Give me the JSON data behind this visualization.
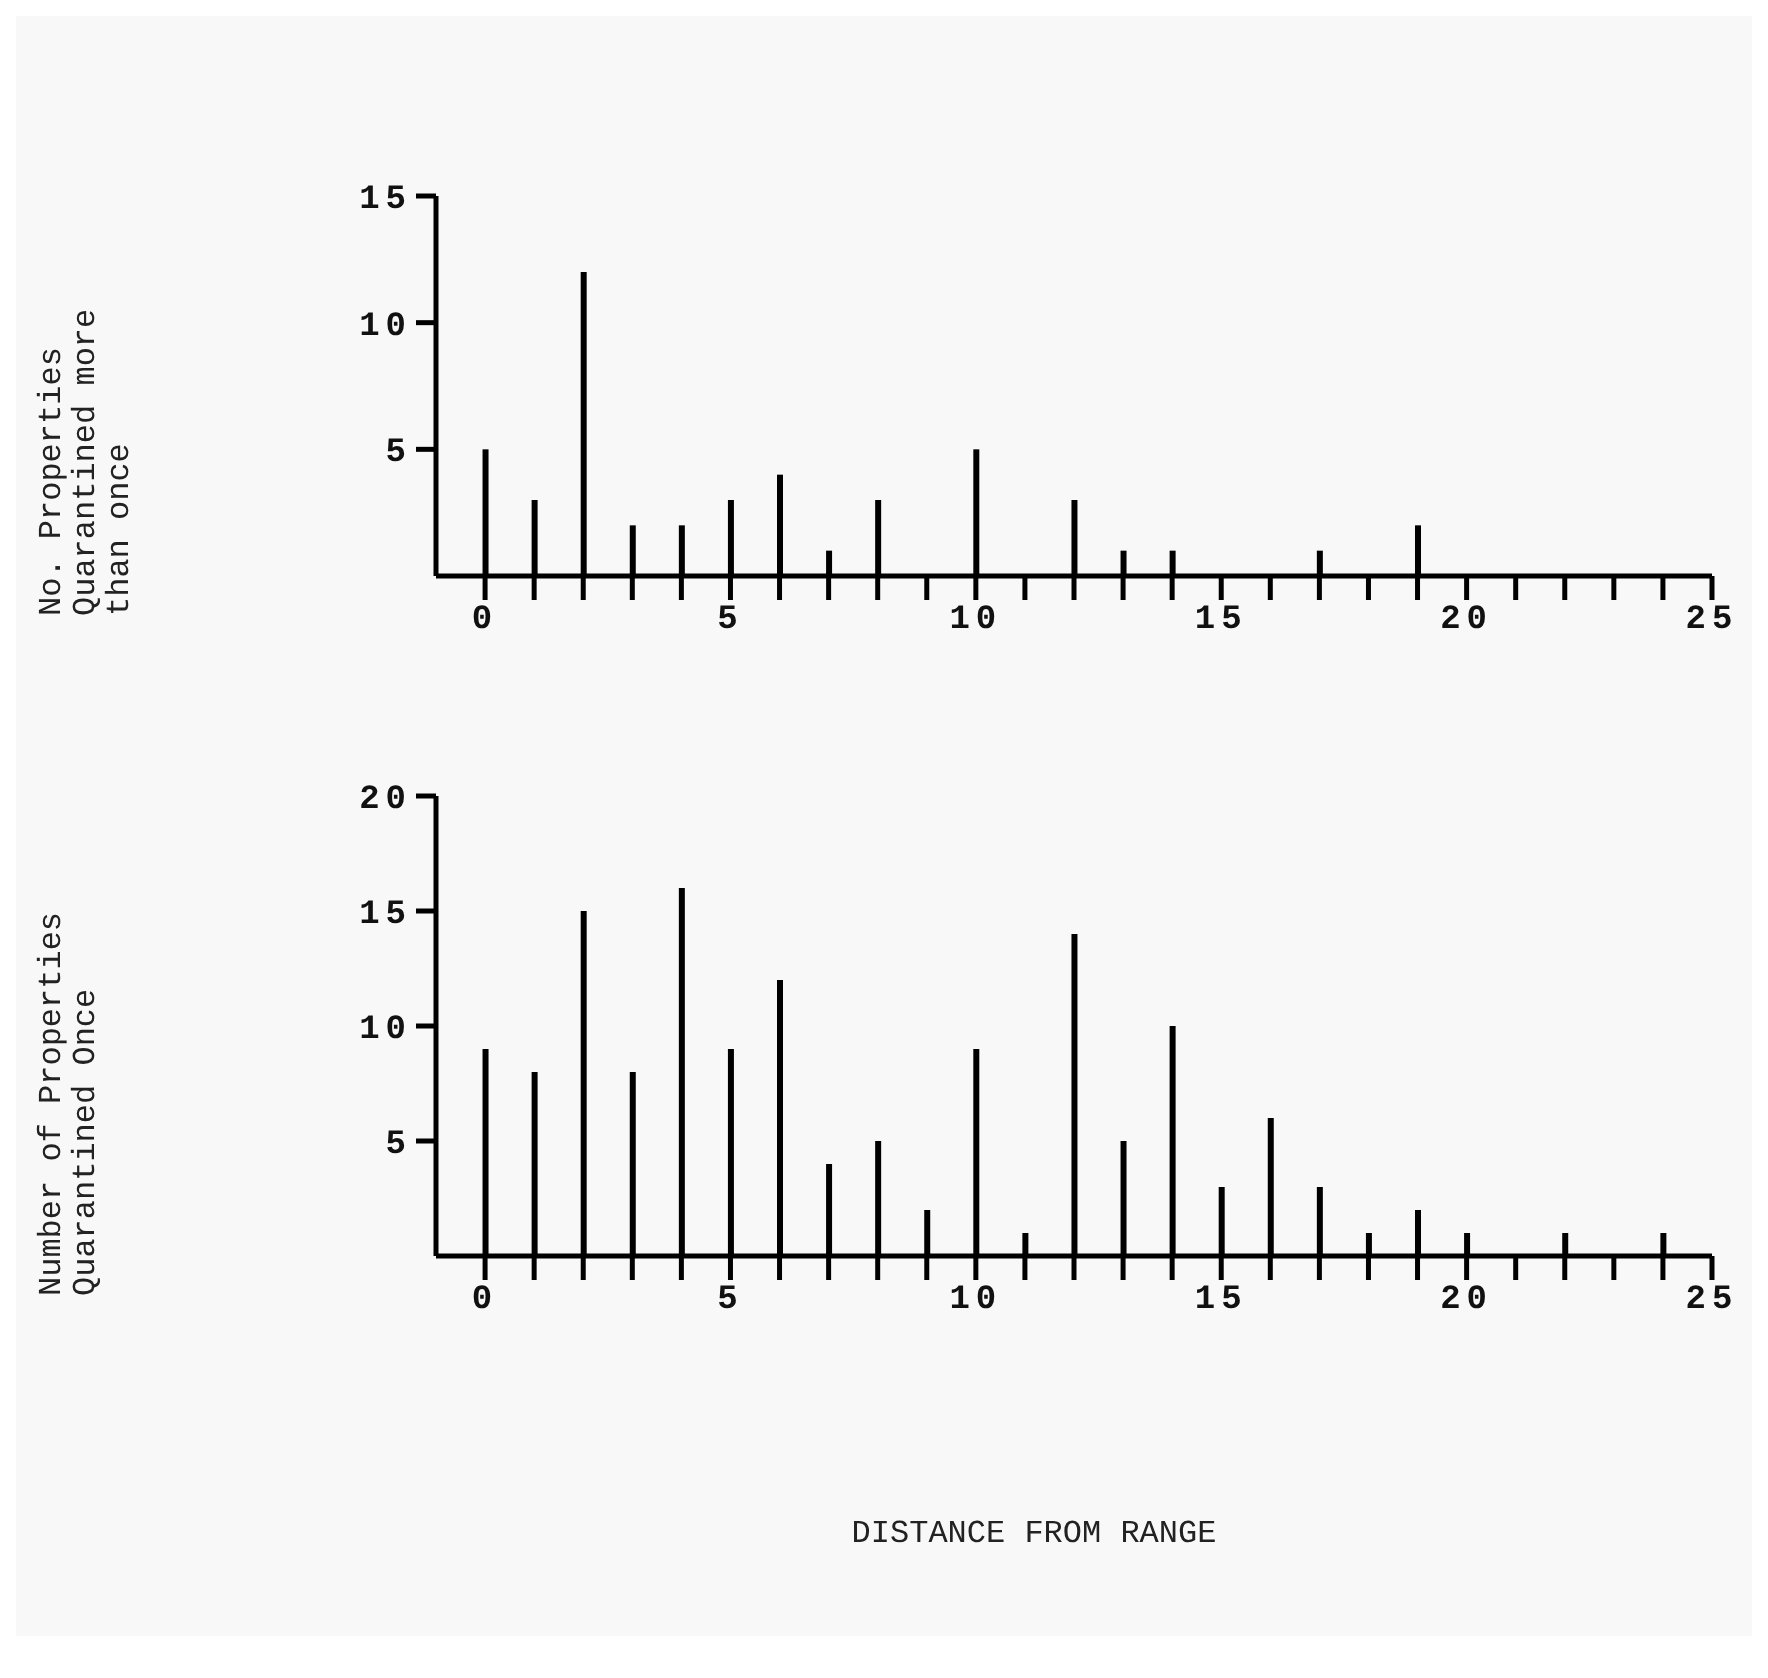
{
  "chart_data": [
    {
      "type": "bar",
      "ylabel": "No. Properties Quarantined more than once",
      "x": [
        0,
        1,
        2,
        3,
        4,
        5,
        6,
        7,
        8,
        9,
        10,
        11,
        12,
        13,
        14,
        15,
        16,
        17,
        18,
        19,
        20,
        21,
        22,
        23,
        24,
        25
      ],
      "values": [
        5,
        3,
        12,
        2,
        2,
        3,
        4,
        1,
        3,
        0,
        5,
        0,
        3,
        1,
        1,
        0,
        0,
        1,
        0,
        2,
        0,
        0,
        0,
        0,
        0,
        0
      ],
      "color": "#000000",
      "xlim": [
        -1,
        25
      ],
      "ylim": [
        0,
        15
      ],
      "yticks": [
        5,
        10,
        15
      ],
      "xticks": [
        0,
        {
          "value": 1,
          "label": null
        },
        {
          "value": 2,
          "label": null
        },
        {
          "value": 3,
          "label": null
        },
        {
          "value": 4,
          "label": null
        },
        5,
        {
          "value": 6,
          "label": null
        },
        {
          "value": 7,
          "label": null
        },
        {
          "value": 8,
          "label": null
        },
        {
          "value": 9,
          "label": null
        },
        10,
        {
          "value": 11,
          "label": null
        },
        {
          "value": 12,
          "label": null
        },
        {
          "value": 13,
          "label": null
        },
        {
          "value": 14,
          "label": null
        },
        15,
        {
          "value": 16,
          "label": null
        },
        {
          "value": 17,
          "label": null
        },
        {
          "value": 18,
          "label": null
        },
        {
          "value": 19,
          "label": null
        },
        20,
        {
          "value": 21,
          "label": null
        },
        {
          "value": 22,
          "label": null
        },
        {
          "value": 23,
          "label": null
        },
        {
          "value": 24,
          "label": null
        },
        25
      ]
    },
    {
      "type": "bar",
      "ylabel": "Number of Properties Quarantined Once",
      "xlabel": "DISTANCE FROM RANGE",
      "x": [
        0,
        1,
        2,
        3,
        4,
        5,
        6,
        7,
        8,
        9,
        10,
        11,
        12,
        13,
        14,
        15,
        16,
        17,
        18,
        19,
        20,
        21,
        22,
        23,
        24,
        25
      ],
      "values": [
        9,
        8,
        15,
        8,
        16,
        9,
        12,
        4,
        5,
        2,
        9,
        1,
        14,
        5,
        10,
        3,
        6,
        3,
        1,
        2,
        1,
        0,
        1,
        0,
        1,
        0
      ],
      "color": "#000000",
      "xlim": [
        -1,
        25
      ],
      "ylim": [
        0,
        20
      ],
      "yticks": [
        5,
        10,
        15,
        20
      ],
      "xticks": [
        0,
        {
          "value": 1,
          "label": null
        },
        {
          "value": 2,
          "label": null
        },
        {
          "value": 3,
          "label": null
        },
        {
          "value": 4,
          "label": null
        },
        5,
        {
          "value": 6,
          "label": null
        },
        {
          "value": 7,
          "label": null
        },
        {
          "value": 8,
          "label": null
        },
        {
          "value": 9,
          "label": null
        },
        10,
        {
          "value": 11,
          "label": null
        },
        {
          "value": 12,
          "label": null
        },
        {
          "value": 13,
          "label": null
        },
        {
          "value": 14,
          "label": null
        },
        15,
        {
          "value": 16,
          "label": null
        },
        {
          "value": 17,
          "label": null
        },
        {
          "value": 18,
          "label": null
        },
        {
          "value": 19,
          "label": null
        },
        20,
        {
          "value": 21,
          "label": null
        },
        {
          "value": 22,
          "label": null
        },
        {
          "value": 23,
          "label": null
        },
        {
          "value": 24,
          "label": null
        },
        25
      ]
    }
  ]
}
